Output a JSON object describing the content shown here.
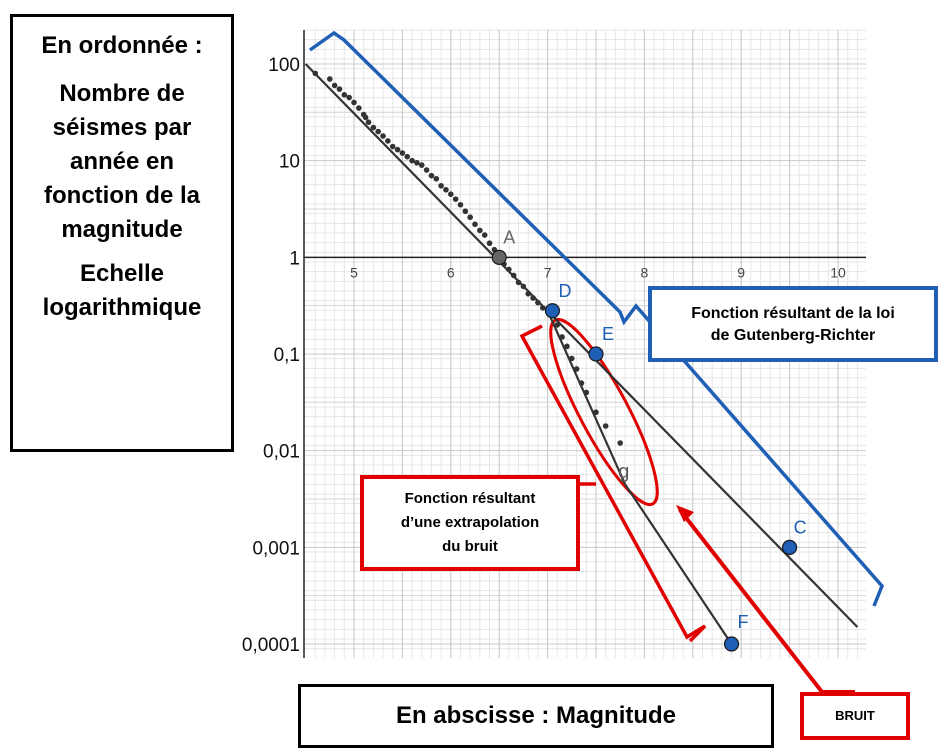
{
  "ylabel_box": {
    "lines": [
      "En ordonnée :",
      "Nombre de",
      "séismes par",
      "année en",
      "fonction de la",
      "magnitude",
      "Echelle",
      "logarithmique"
    ]
  },
  "xlabel_box": {
    "text": "En abscisse : Magnitude"
  },
  "gr_box": {
    "line1": "Fonction résultant de la loi",
    "line2": "de Gutenberg-Richter"
  },
  "extrap_box": {
    "line1": "Fonction résultant",
    "line2": "d’une extrapolation",
    "line3": "du bruit"
  },
  "bruit_box": {
    "text": "BRUIT"
  },
  "colors": {
    "blue": "#1f5fb5",
    "red": "#e00000",
    "point_blue": "#1f5fb5",
    "line": "#333333"
  },
  "chart_data": {
    "type": "scatter",
    "y_scale": "log",
    "xlim": [
      4.5,
      10.3
    ],
    "ylim": [
      0.0001,
      100
    ],
    "x_ticks": [
      "5",
      "6",
      "7",
      "8",
      "9",
      "10"
    ],
    "y_ticks": [
      "100",
      "10",
      "1",
      "0,1",
      "0,01",
      "0,001",
      "0,0001"
    ],
    "grid": true,
    "lines": [
      {
        "label": "",
        "from": [
          4.5,
          100
        ],
        "to": [
          10.2,
          0.00015
        ]
      },
      {
        "label": "g",
        "from": [
          7.0,
          0.28
        ],
        "to": [
          7.8,
          0.0045
        ]
      },
      {
        "label": "",
        "from": [
          7.8,
          0.0045
        ],
        "to": [
          8.9,
          0.0001
        ]
      }
    ],
    "points": [
      {
        "name": "A",
        "x": 6.5,
        "y": 1
      },
      {
        "name": "D",
        "x": 7.05,
        "y": 0.28
      },
      {
        "name": "E",
        "x": 7.5,
        "y": 0.1
      },
      {
        "name": "C",
        "x": 9.5,
        "y": 0.001
      },
      {
        "name": "F",
        "x": 8.9,
        "y": 0.0001
      }
    ],
    "line_label": "g",
    "scatter": [
      [
        4.6,
        80
      ],
      [
        4.75,
        70
      ],
      [
        4.8,
        60
      ],
      [
        4.85,
        55
      ],
      [
        4.9,
        48
      ],
      [
        4.95,
        45
      ],
      [
        5.0,
        40
      ],
      [
        5.05,
        35
      ],
      [
        5.1,
        30
      ],
      [
        5.12,
        28
      ],
      [
        5.15,
        25
      ],
      [
        5.2,
        22
      ],
      [
        5.25,
        20
      ],
      [
        5.3,
        18
      ],
      [
        5.35,
        16
      ],
      [
        5.4,
        14
      ],
      [
        5.45,
        13
      ],
      [
        5.5,
        12
      ],
      [
        5.55,
        11
      ],
      [
        5.6,
        10
      ],
      [
        5.65,
        9.5
      ],
      [
        5.7,
        9
      ],
      [
        5.75,
        8
      ],
      [
        5.8,
        7
      ],
      [
        5.85,
        6.5
      ],
      [
        5.9,
        5.5
      ],
      [
        5.95,
        5
      ],
      [
        6.0,
        4.5
      ],
      [
        6.05,
        4
      ],
      [
        6.1,
        3.5
      ],
      [
        6.15,
        3
      ],
      [
        6.2,
        2.6
      ],
      [
        6.25,
        2.2
      ],
      [
        6.3,
        1.9
      ],
      [
        6.35,
        1.7
      ],
      [
        6.4,
        1.4
      ],
      [
        6.45,
        1.2
      ],
      [
        6.55,
        0.85
      ],
      [
        6.6,
        0.75
      ],
      [
        6.65,
        0.65
      ],
      [
        6.7,
        0.55
      ],
      [
        6.75,
        0.5
      ],
      [
        6.8,
        0.42
      ],
      [
        6.85,
        0.38
      ],
      [
        6.9,
        0.34
      ],
      [
        6.95,
        0.3
      ],
      [
        7.1,
        0.2
      ],
      [
        7.15,
        0.15
      ],
      [
        7.2,
        0.12
      ],
      [
        7.25,
        0.09
      ],
      [
        7.3,
        0.07
      ],
      [
        7.35,
        0.05
      ],
      [
        7.4,
        0.04
      ],
      [
        7.5,
        0.025
      ],
      [
        7.6,
        0.018
      ],
      [
        7.75,
        0.012
      ]
    ]
  }
}
